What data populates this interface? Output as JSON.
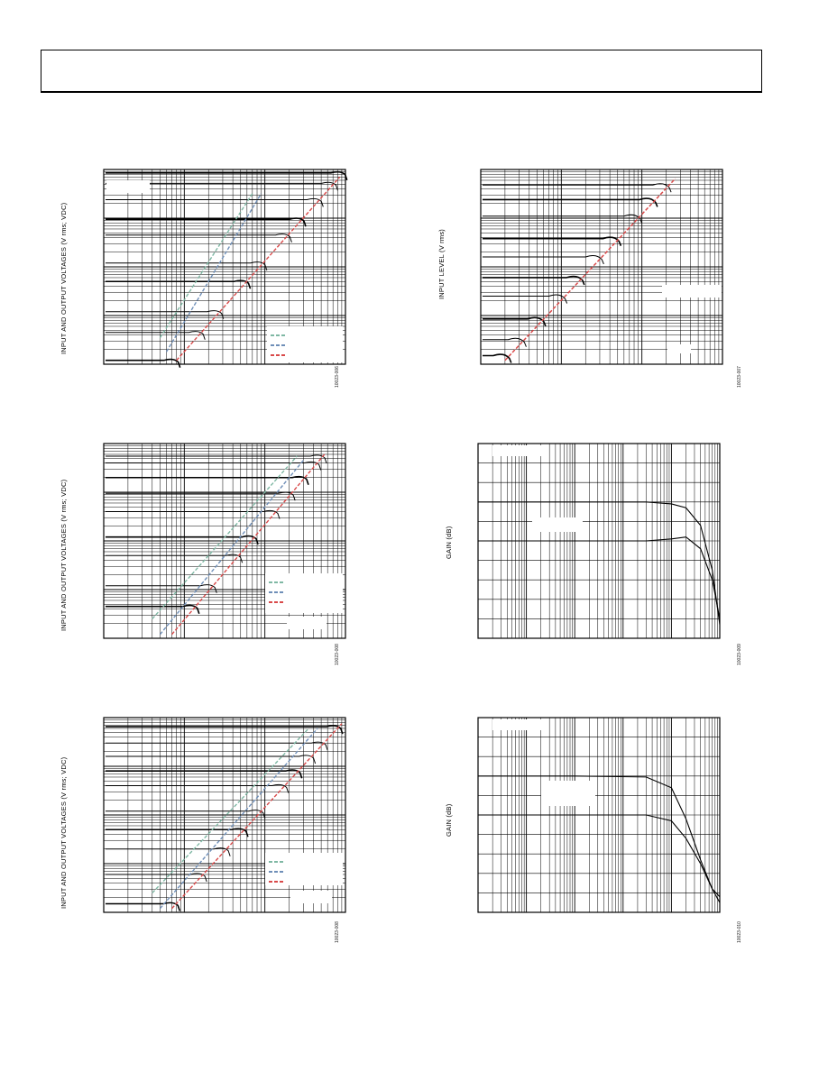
{
  "header": {
    "title": ""
  },
  "charts": [
    {
      "id": "tl",
      "ylabel": "INPUT AND OUTPUT VOLTAGES (V rms; VDC)",
      "fig_id": "10023-006",
      "chart_data": {
        "type": "line",
        "title": "",
        "xlabel": "",
        "ylabel": "INPUT AND OUTPUT VOLTAGES (V rms; VDC)",
        "x_scale": "log",
        "y_scale": "log",
        "xlim": [
          0.01,
          10
        ],
        "ylim": [
          0.001,
          10
        ],
        "grid": true,
        "legend": "bottom-right",
        "legend_colors": [
          "#7fb8a4",
          "#6f8fb8",
          "#d94a4a"
        ],
        "input_levels": [
          0.0012,
          0.0045,
          0.012,
          0.05,
          0.12,
          0.45,
          0.95,
          2.4,
          5.2,
          8.5
        ],
        "dashed_lines": [
          {
            "color": "#7fb8a4",
            "x": [
              0.05,
              0.7
            ],
            "y": [
              0.0035,
              3.2
            ]
          },
          {
            "color": "#6f8fb8",
            "x": [
              0.06,
              0.9
            ],
            "y": [
              0.0018,
              3.2
            ]
          },
          {
            "color": "#d94a4a",
            "x": [
              0.08,
              8.5
            ],
            "y": [
              0.0012,
              7.0
            ]
          }
        ]
      }
    },
    {
      "id": "tr",
      "ylabel": "INPUT LEVEL (V rms)",
      "fig_id": "10023-007",
      "chart_data": {
        "type": "line",
        "title": "",
        "xlabel": "",
        "ylabel": "INPUT LEVEL (V rms)",
        "x_scale": "log",
        "y_scale": "log",
        "xlim": [
          0.01,
          10
        ],
        "ylim": [
          0.001,
          10
        ],
        "grid": true,
        "legend": "right",
        "legend_colors": [],
        "input_levels": [
          0.0015,
          0.0032,
          0.0085,
          0.025,
          0.06,
          0.16,
          0.38,
          1.1,
          2.4,
          4.8
        ],
        "dashed_lines": [
          {
            "color": "#d94a4a",
            "x": [
              0.02,
              2.6
            ],
            "y": [
              0.0012,
              6.5
            ]
          }
        ]
      }
    },
    {
      "id": "ml",
      "ylabel": "INPUT AND OUTPUT VOLTAGES (V rms; VDC)",
      "fig_id": "10023-008",
      "chart_data": {
        "type": "line",
        "title": "",
        "xlabel": "",
        "ylabel": "INPUT AND OUTPUT VOLTAGES (V rms; VDC)",
        "x_scale": "log",
        "y_scale": "log",
        "xlim": [
          0.01,
          10
        ],
        "ylim": [
          0.001,
          10
        ],
        "grid": true,
        "legend": "bottom-right",
        "legend_colors": [
          "#7fb8a4",
          "#6f8fb8",
          "#d94a4a"
        ],
        "input_levels": [
          0.0045,
          0.012,
          0.05,
          0.12,
          0.4,
          0.95,
          2.0,
          4.0,
          5.5
        ],
        "dashed_lines": [
          {
            "color": "#7fb8a4",
            "x": [
              0.04,
              2.5
            ],
            "y": [
              0.0025,
              5.5
            ]
          },
          {
            "color": "#6f8fb8",
            "x": [
              0.05,
              3.0
            ],
            "y": [
              0.0012,
              4.5
            ]
          },
          {
            "color": "#d94a4a",
            "x": [
              0.07,
              5.5
            ],
            "y": [
              0.0012,
              6.0
            ]
          }
        ]
      }
    },
    {
      "id": "mr",
      "ylabel": "GAIN (dB)",
      "fig_id": "10023-009",
      "chart_data": {
        "type": "line",
        "title": "",
        "xlabel": "",
        "ylabel": "GAIN (dB)",
        "x_scale": "log",
        "y_scale": "linear",
        "xlim": [
          1,
          100000
        ],
        "ylim": [
          -10,
          0
        ],
        "grid": true,
        "legend": "top-left",
        "series": [
          {
            "levels": [
              -3.0,
              -3.0,
              -3.0,
              -3.1,
              -3.3,
              -4.2,
              -6.5,
              -9.3
            ]
          },
          {
            "levels": [
              -5.0,
              -5.0,
              -5.0,
              -4.9,
              -4.8,
              -5.4,
              -7.0,
              -9.0
            ]
          }
        ],
        "x": [
          1,
          100,
          3000,
          10000,
          20000,
          40000,
          70000,
          100000
        ]
      }
    },
    {
      "id": "br",
      "ylabel": "GAIN (dB)",
      "fig_id": "10023-010",
      "chart_data": {
        "type": "line",
        "title": "",
        "xlabel": "",
        "ylabel": "GAIN (dB)",
        "x_scale": "log",
        "y_scale": "linear",
        "xlim": [
          1,
          100000
        ],
        "ylim": [
          -10,
          0
        ],
        "grid": true,
        "legend": "top-left",
        "series": [
          {
            "levels": [
              -3.0,
              -3.0,
              -3.05,
              -3.6,
              -5.2,
              -7.3,
              -8.8,
              -9.5
            ]
          },
          {
            "levels": [
              -5.0,
              -5.0,
              -5.0,
              -5.3,
              -6.2,
              -7.5,
              -8.8,
              -9.2
            ]
          }
        ],
        "x": [
          1,
          100,
          3000,
          10000,
          20000,
          40000,
          70000,
          100000
        ]
      }
    }
  ]
}
